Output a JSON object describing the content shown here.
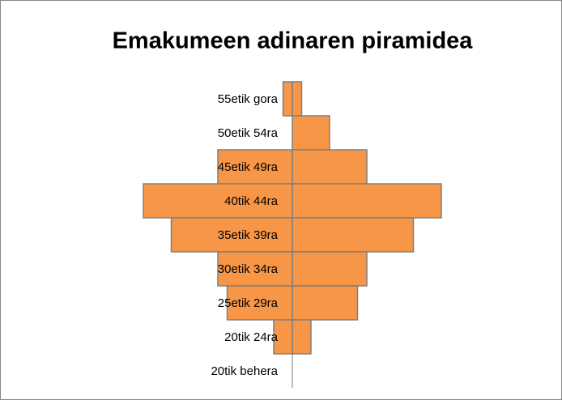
{
  "chart_data": {
    "type": "pyramid",
    "title": "Emakumeen adinaren piramidea",
    "categories": [
      "55etik gora",
      "50etik 54ra",
      "45etik 49ra",
      "40tik 44ra",
      "35etik 39ra",
      "30etik 34ra",
      "25etik 29ra",
      "20tik 24ra",
      "20tik behera"
    ],
    "series": [
      {
        "color": "#f79646",
        "values": [
          1,
          0,
          8,
          16,
          13,
          8,
          7,
          2,
          0
        ]
      },
      {
        "color": "#f79646",
        "values": [
          1,
          4,
          8,
          16,
          13,
          8,
          7,
          2,
          0
        ]
      }
    ]
  }
}
